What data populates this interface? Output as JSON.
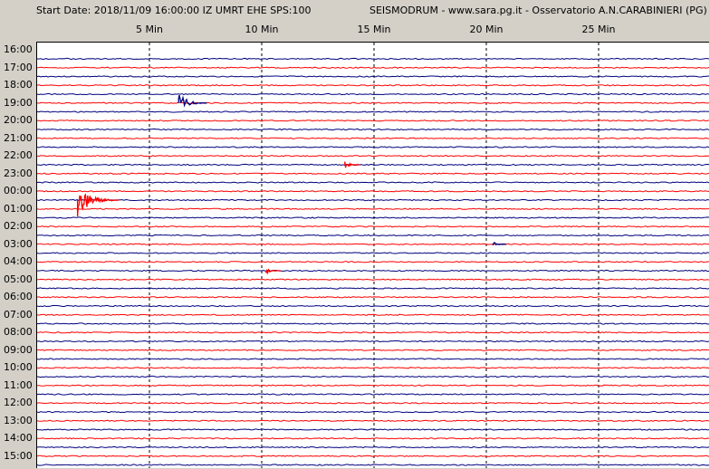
{
  "header": {
    "start_date": "Start Date: 2018/11/09 16:00:00 IZ UMRT     EHE   SPS:100",
    "station": "SEISMODRUM - www.sara.pg.it - Osservatorio A.N.CARABINIERI (PG)"
  },
  "minute_labels": [
    "5 Min",
    "10 Min",
    "15 Min",
    "20 Min",
    "25 Min"
  ],
  "hour_labels": [
    "16:00",
    "17:00",
    "18:00",
    "19:00",
    "20:00",
    "21:00",
    "22:00",
    "23:00",
    "00:00",
    "01:00",
    "02:00",
    "03:00",
    "04:00",
    "05:00",
    "06:00",
    "07:00",
    "08:00",
    "09:00",
    "10:00",
    "11:00",
    "12:00",
    "13:00",
    "14:00",
    "15:00"
  ],
  "colors": {
    "trace_blue": "#00007f",
    "trace_red": "#ff0000",
    "grid": "#000000",
    "background": "#ffffff"
  },
  "events": [
    {
      "line": 5,
      "minute": 6.3,
      "amp": 1.0,
      "color": "blue"
    },
    {
      "line": 12,
      "minute": 13.7,
      "amp": 0.4,
      "color": "red"
    },
    {
      "line": 16,
      "minute": 1.8,
      "amp": 1.6,
      "color": "red"
    },
    {
      "line": 24,
      "minute": 10.2,
      "amp": 0.35,
      "color": "red"
    },
    {
      "line": 21,
      "minute": 20.3,
      "amp": 0.3,
      "color": "blue"
    },
    {
      "line": 30,
      "minute": 0,
      "amp": 0,
      "color": "blue"
    }
  ]
}
